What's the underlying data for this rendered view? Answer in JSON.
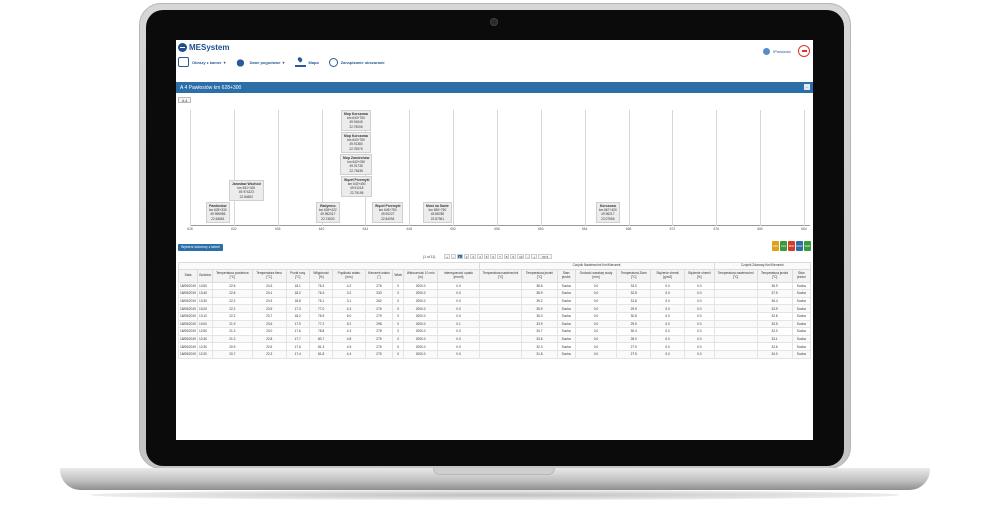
{
  "app": {
    "logo_text": "MESystem",
    "user_name": "tPawlowic",
    "brand_color": "#1f4f8f",
    "accent_color": "#2b6ea8"
  },
  "menu": [
    {
      "label": "Obrazy z kamer",
      "icon": "camera-icon",
      "dropdown": true
    },
    {
      "label": "Dane pogodowe",
      "icon": "weather-icon",
      "dropdown": true
    },
    {
      "label": "Mapa",
      "icon": "map-pin-icon",
      "dropdown": false
    },
    {
      "label": "Zarządzanie obszarami",
      "icon": "search-icon",
      "dropdown": false
    }
  ],
  "panel": {
    "title": "A 4 Pawłosiów km 628+300",
    "tab": "A-4"
  },
  "timeline": {
    "ticks": [
      "628",
      "632",
      "636",
      "640",
      "644",
      "648",
      "652",
      "656",
      "660",
      "664",
      "668",
      "672",
      "676",
      "680",
      "684"
    ],
    "markers": [
      {
        "name": "Pawłosiów",
        "line1": "km 628+330",
        "line2": "49.996986",
        "line3": "22.64681"
      },
      {
        "name": "Jarosław Wschód",
        "line1": "km 631+420",
        "line2": "49.974223",
        "line3": "22.84692"
      },
      {
        "name": "Radymno",
        "line1": "km 639+422",
        "line2": "49.952317",
        "line3": "22.74530"
      },
      {
        "name": "Mop Korczowa",
        "line1": "km 643+750",
        "line2": "49.91645",
        "line3": "22.75006"
      },
      {
        "name": "Mop Korczowa",
        "line1": "km 643+750",
        "line2": "49.91380",
        "line3": "22.76976"
      },
      {
        "name": "Mop Zamiechów",
        "line1": "km 642+050",
        "line2": "49.91735",
        "line3": "22.75435"
      },
      {
        "name": "Węzeł Przemyśl",
        "line1": "km 643+450",
        "line2": "49.91218",
        "line3": "22.79195"
      },
      {
        "name": "Węzeł Przemyśl",
        "line1": "km 645+750",
        "line2": "49.90227",
        "line3": "22.84094"
      },
      {
        "name": "Most na Sanie",
        "line1": "km 650+750",
        "line2": "49.88788",
        "line3": "22.87961"
      },
      {
        "name": "Korczowa",
        "line1": "km 667+400",
        "line2": "49.96217",
        "line3": "23.07556"
      }
    ]
  },
  "toolbar": {
    "columns_button": "Wybierz kolumny z tabeli",
    "exports": [
      {
        "label": "CSV",
        "color": "#e0a21c"
      },
      {
        "label": "XLS",
        "color": "#3a9a3a"
      },
      {
        "label": "PDF",
        "color": "#d33b2b"
      },
      {
        "label": "DOC",
        "color": "#2b6ea8"
      },
      {
        "label": "XML",
        "color": "#3a9a3a"
      }
    ]
  },
  "pager": {
    "info": "(1 of 11)",
    "first": "«",
    "prev": "‹",
    "pages": [
      "1",
      "2",
      "3",
      "4",
      "5",
      "6",
      "7",
      "8",
      "9",
      "10"
    ],
    "next": "›",
    "last": "»",
    "rows_per_page": "50"
  },
  "table": {
    "group_headers": [
      "Czujnik Nawierzchni Km/Kierunek",
      "Czujnik Zdanosy Km/Kierunek"
    ],
    "columns": [
      "Data",
      "Godzina",
      "Temperatura powietrza [°C]",
      "Temperatura tlenu [°C]",
      "Punkt rosy [°C]",
      "Wilgotność [%]",
      "Prędkość wiatru [m/s]",
      "Kierunek wiatru [°]",
      "Wiatr",
      "Widoczność 10 min [m]",
      "Intensywność opadu [mm/h]",
      "Temperatura nawierzchni [°C]",
      "Temperatura jezdni [°C]",
      "Stan jezdni",
      "Grubość warstwy wody [mm]",
      "Temperatura Ziarn [°C]",
      "Stężenie chemii [g/m2]",
      "Stężenie chemii [%]",
      "Temperatura nawierzchni [°C]",
      "Temperatura jezdni [°C]",
      "Stan jezdni"
    ],
    "rows": [
      [
        "18/08/2019",
        "13:50",
        "22.5",
        "24.3",
        "18.1",
        "76.3",
        "4.2",
        "276",
        "0",
        "2000.0",
        "0.0",
        "",
        "38.6",
        "Sucha",
        "0.0",
        "33.0",
        "0.0",
        "0.0",
        "",
        "36.9",
        "Sucha"
      ],
      [
        "18/08/2019",
        "13:40",
        "22.6",
        "24.1",
        "18.2",
        "76.3",
        "3.2",
        "333",
        "0",
        "2000.0",
        "0.0",
        "",
        "38.9",
        "Sucha",
        "0.0",
        "32.8",
        "0.0",
        "0.0",
        "",
        "37.5",
        "Sucha"
      ],
      [
        "18/08/2019",
        "13:30",
        "22.2",
        "24.3",
        "18.8",
        "75.1",
        "3.1",
        "262",
        "0",
        "2000.0",
        "0.0",
        "",
        "39.2",
        "Sucha",
        "0.0",
        "31.8",
        "0.0",
        "0.0",
        "",
        "36.4",
        "Sucha"
      ],
      [
        "18/08/2019",
        "13:20",
        "22.2",
        "23.9",
        "17.3",
        "77.0",
        "4.3",
        "276",
        "0",
        "2000.0",
        "0.0",
        "",
        "35.9",
        "Sucha",
        "0.0",
        "29.9",
        "0.0",
        "0.0",
        "",
        "33.9",
        "Sucha"
      ],
      [
        "18/08/2019",
        "13:10",
        "22.2",
        "23.7",
        "18.2",
        "76.9",
        "6.0",
        "279",
        "0",
        "2000.0",
        "0.0",
        "",
        "35.0",
        "Sucha",
        "0.0",
        "30.8",
        "0.0",
        "0.0",
        "",
        "32.8",
        "Sucha"
      ],
      [
        "18/08/2019",
        "13:00",
        "21.9",
        "23.6",
        "17.9",
        "77.2",
        "5.2",
        "298",
        "0",
        "2000.0",
        "0.1",
        "",
        "33.9",
        "Sucha",
        "0.0",
        "29.5",
        "0.0",
        "0.0",
        "",
        "33.5",
        "Sucha"
      ],
      [
        "18/08/2019",
        "12:50",
        "21.3",
        "23.0",
        "17.6",
        "78.8",
        "4.3",
        "278",
        "0",
        "2000.0",
        "0.0",
        "",
        "34.7",
        "Sucha",
        "0.0",
        "30.4",
        "0.0",
        "0.0",
        "",
        "32.0",
        "Sucha"
      ],
      [
        "18/08/2019",
        "12:40",
        "21.2",
        "22.8",
        "17.7",
        "80.7",
        "4.8",
        "275",
        "0",
        "2000.0",
        "0.0",
        "",
        "33.6",
        "Sucha",
        "0.0",
        "28.0",
        "0.0",
        "0.0",
        "",
        "33.1",
        "Sucha"
      ],
      [
        "18/08/2019",
        "12:30",
        "20.9",
        "22.6",
        "17.5",
        "81.3",
        "4.5",
        "276",
        "0",
        "2000.0",
        "0.0",
        "",
        "32.3",
        "Sucha",
        "0.0",
        "27.9",
        "0.0",
        "0.0",
        "",
        "32.6",
        "Sucha"
      ],
      [
        "18/08/2019",
        "12:20",
        "20.7",
        "22.3",
        "17.4",
        "81.8",
        "4.4",
        "275",
        "0",
        "2000.0",
        "0.0",
        "",
        "31.8",
        "Sucha",
        "0.0",
        "27.5",
        "0.0",
        "0.0",
        "",
        "34.0",
        "Sucha"
      ]
    ]
  }
}
